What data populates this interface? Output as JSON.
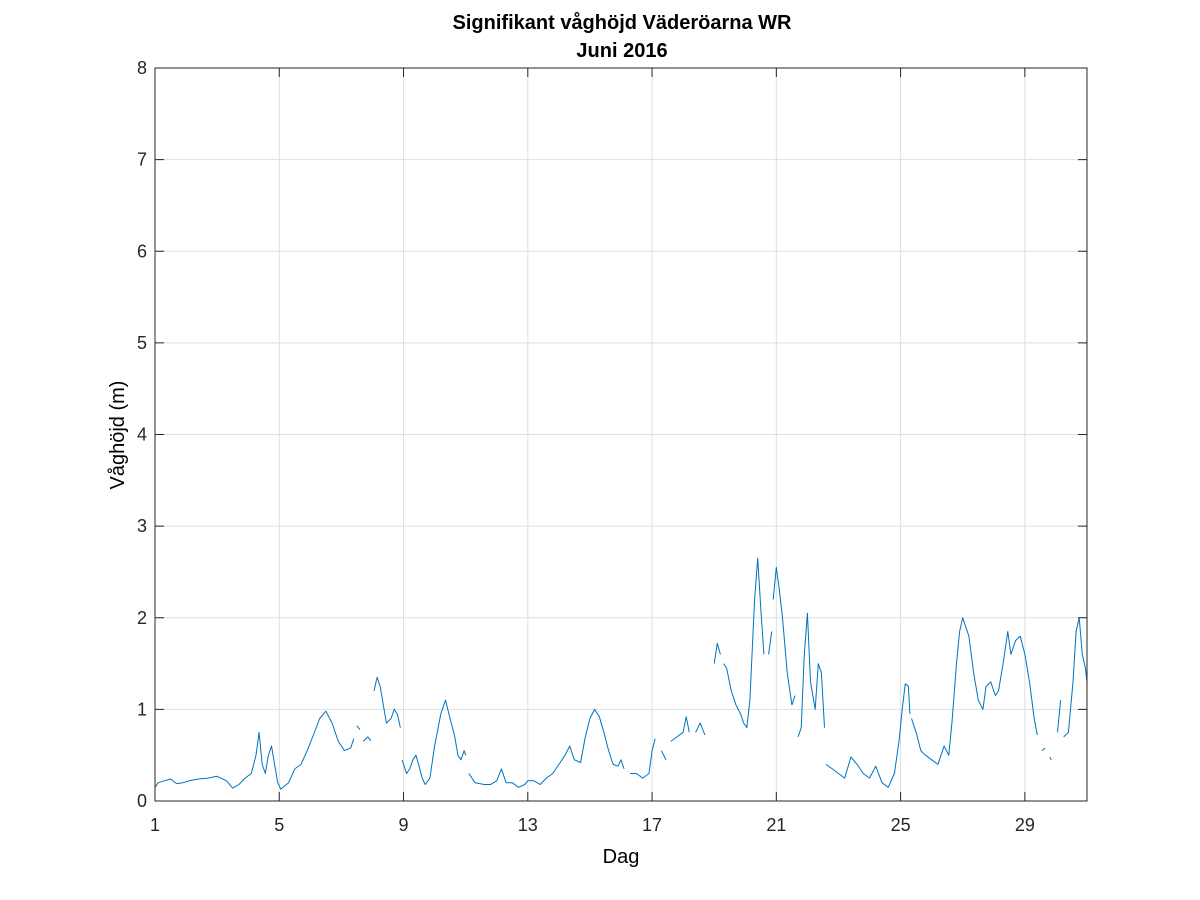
{
  "chart_data": {
    "type": "line",
    "title": "Signifikant våghöjd Väderöarna WR",
    "subtitle": "Juni 2016",
    "xlabel": "Dag",
    "ylabel": "Våghöjd (m)",
    "xlim": [
      1,
      31
    ],
    "ylim": [
      0,
      8
    ],
    "xticks": [
      1,
      5,
      9,
      13,
      17,
      21,
      25,
      29
    ],
    "yticks": [
      0,
      1,
      2,
      3,
      4,
      5,
      6,
      7,
      8
    ],
    "grid": true,
    "legend": "none",
    "line_color": "#0072BD",
    "series": [
      {
        "segments": [
          [
            [
              1.0,
              0.15
            ],
            [
              1.1,
              0.2
            ],
            [
              1.3,
              0.22
            ],
            [
              1.5,
              0.24
            ],
            [
              1.7,
              0.19
            ],
            [
              1.9,
              0.2
            ],
            [
              2.1,
              0.22
            ],
            [
              2.4,
              0.24
            ],
            [
              2.7,
              0.25
            ],
            [
              3.0,
              0.27
            ],
            [
              3.3,
              0.22
            ],
            [
              3.5,
              0.14
            ],
            [
              3.7,
              0.18
            ],
            [
              3.9,
              0.25
            ],
            [
              4.1,
              0.3
            ],
            [
              4.25,
              0.5
            ],
            [
              4.35,
              0.75
            ],
            [
              4.45,
              0.4
            ],
            [
              4.55,
              0.3
            ],
            [
              4.65,
              0.5
            ],
            [
              4.75,
              0.6
            ],
            [
              4.85,
              0.4
            ],
            [
              4.95,
              0.2
            ],
            [
              5.05,
              0.13
            ],
            [
              5.3,
              0.2
            ],
            [
              5.5,
              0.35
            ],
            [
              5.7,
              0.4
            ],
            [
              5.9,
              0.55
            ],
            [
              6.1,
              0.72
            ],
            [
              6.3,
              0.9
            ],
            [
              6.5,
              0.98
            ],
            [
              6.7,
              0.85
            ],
            [
              6.9,
              0.65
            ],
            [
              7.1,
              0.55
            ],
            [
              7.3,
              0.58
            ],
            [
              7.4,
              0.68
            ]
          ],
          [
            [
              7.5,
              0.82
            ],
            [
              7.6,
              0.78
            ]
          ],
          [
            [
              7.7,
              0.65
            ],
            [
              7.85,
              0.7
            ],
            [
              7.95,
              0.66
            ]
          ],
          [
            [
              8.05,
              1.2
            ],
            [
              8.15,
              1.35
            ],
            [
              8.25,
              1.25
            ],
            [
              8.35,
              1.05
            ],
            [
              8.45,
              0.85
            ],
            [
              8.6,
              0.9
            ],
            [
              8.7,
              1.0
            ],
            [
              8.8,
              0.95
            ],
            [
              8.9,
              0.8
            ]
          ],
          [
            [
              8.95,
              0.45
            ],
            [
              9.1,
              0.3
            ],
            [
              9.2,
              0.35
            ],
            [
              9.3,
              0.45
            ],
            [
              9.4,
              0.5
            ],
            [
              9.5,
              0.38
            ],
            [
              9.6,
              0.25
            ],
            [
              9.7,
              0.18
            ],
            [
              9.85,
              0.25
            ],
            [
              10.0,
              0.6
            ],
            [
              10.2,
              0.95
            ],
            [
              10.35,
              1.1
            ],
            [
              10.5,
              0.9
            ],
            [
              10.65,
              0.7
            ],
            [
              10.75,
              0.5
            ],
            [
              10.85,
              0.45
            ],
            [
              10.95,
              0.55
            ],
            [
              11.0,
              0.5
            ]
          ],
          [
            [
              11.1,
              0.3
            ],
            [
              11.3,
              0.2
            ],
            [
              11.6,
              0.18
            ],
            [
              11.8,
              0.18
            ],
            [
              12.0,
              0.22
            ],
            [
              12.15,
              0.35
            ],
            [
              12.3,
              0.2
            ],
            [
              12.5,
              0.2
            ],
            [
              12.7,
              0.15
            ],
            [
              12.9,
              0.18
            ],
            [
              13.0,
              0.22
            ],
            [
              13.2,
              0.22
            ],
            [
              13.4,
              0.18
            ],
            [
              13.6,
              0.25
            ],
            [
              13.8,
              0.3
            ],
            [
              14.0,
              0.4
            ],
            [
              14.2,
              0.5
            ],
            [
              14.35,
              0.6
            ],
            [
              14.5,
              0.45
            ],
            [
              14.7,
              0.42
            ],
            [
              14.85,
              0.7
            ],
            [
              15.0,
              0.9
            ],
            [
              15.15,
              1.0
            ],
            [
              15.3,
              0.92
            ],
            [
              15.45,
              0.75
            ],
            [
              15.6,
              0.55
            ],
            [
              15.75,
              0.4
            ],
            [
              15.9,
              0.38
            ],
            [
              16.0,
              0.45
            ],
            [
              16.1,
              0.35
            ]
          ],
          [
            [
              16.3,
              0.3
            ],
            [
              16.5,
              0.3
            ],
            [
              16.7,
              0.25
            ],
            [
              16.9,
              0.3
            ],
            [
              17.0,
              0.55
            ],
            [
              17.1,
              0.68
            ]
          ],
          [
            [
              17.3,
              0.55
            ],
            [
              17.45,
              0.45
            ]
          ],
          [
            [
              17.6,
              0.65
            ],
            [
              17.8,
              0.7
            ],
            [
              18.0,
              0.75
            ],
            [
              18.1,
              0.92
            ],
            [
              18.2,
              0.75
            ]
          ],
          [
            [
              18.4,
              0.75
            ],
            [
              18.55,
              0.85
            ],
            [
              18.7,
              0.72
            ]
          ],
          [
            [
              19.0,
              1.5
            ],
            [
              19.1,
              1.72
            ],
            [
              19.2,
              1.6
            ]
          ],
          [
            [
              19.3,
              1.5
            ],
            [
              19.4,
              1.45
            ],
            [
              19.55,
              1.2
            ],
            [
              19.7,
              1.05
            ],
            [
              19.85,
              0.95
            ],
            [
              19.95,
              0.85
            ],
            [
              20.05,
              0.8
            ],
            [
              20.15,
              1.1
            ],
            [
              20.3,
              2.2
            ],
            [
              20.4,
              2.65
            ],
            [
              20.5,
              2.1
            ],
            [
              20.6,
              1.6
            ]
          ],
          [
            [
              20.75,
              1.6
            ],
            [
              20.85,
              1.85
            ]
          ],
          [
            [
              20.9,
              2.2
            ],
            [
              21.0,
              2.55
            ],
            [
              21.1,
              2.3
            ],
            [
              21.2,
              2.0
            ],
            [
              21.35,
              1.4
            ],
            [
              21.5,
              1.05
            ],
            [
              21.6,
              1.15
            ]
          ],
          [
            [
              21.7,
              0.7
            ],
            [
              21.8,
              0.8
            ],
            [
              21.9,
              1.6
            ],
            [
              22.0,
              2.05
            ],
            [
              22.1,
              1.3
            ],
            [
              22.25,
              1.0
            ],
            [
              22.35,
              1.5
            ],
            [
              22.45,
              1.4
            ],
            [
              22.55,
              0.8
            ]
          ],
          [
            [
              22.6,
              0.4
            ],
            [
              22.8,
              0.35
            ],
            [
              23.0,
              0.3
            ],
            [
              23.2,
              0.25
            ],
            [
              23.4,
              0.48
            ],
            [
              23.6,
              0.4
            ],
            [
              23.8,
              0.3
            ],
            [
              24.0,
              0.25
            ],
            [
              24.2,
              0.38
            ],
            [
              24.4,
              0.2
            ],
            [
              24.6,
              0.15
            ],
            [
              24.8,
              0.3
            ],
            [
              24.95,
              0.65
            ],
            [
              25.05,
              1.0
            ],
            [
              25.15,
              1.28
            ],
            [
              25.25,
              1.25
            ],
            [
              25.3,
              0.95
            ]
          ],
          [
            [
              25.35,
              0.9
            ],
            [
              25.5,
              0.75
            ],
            [
              25.65,
              0.55
            ],
            [
              25.8,
              0.5
            ],
            [
              26.0,
              0.45
            ],
            [
              26.2,
              0.4
            ],
            [
              26.4,
              0.6
            ],
            [
              26.55,
              0.5
            ],
            [
              26.65,
              0.85
            ],
            [
              26.8,
              1.5
            ],
            [
              26.9,
              1.85
            ],
            [
              27.0,
              2.0
            ],
            [
              27.2,
              1.8
            ],
            [
              27.35,
              1.4
            ],
            [
              27.5,
              1.1
            ],
            [
              27.65,
              1.0
            ],
            [
              27.75,
              1.25
            ],
            [
              27.9,
              1.3
            ],
            [
              28.05,
              1.15
            ],
            [
              28.15,
              1.2
            ],
            [
              28.3,
              1.5
            ],
            [
              28.45,
              1.85
            ],
            [
              28.55,
              1.6
            ],
            [
              28.7,
              1.75
            ],
            [
              28.85,
              1.8
            ],
            [
              29.0,
              1.6
            ],
            [
              29.15,
              1.3
            ],
            [
              29.3,
              0.9
            ],
            [
              29.4,
              0.72
            ]
          ],
          [
            [
              29.55,
              0.55
            ],
            [
              29.65,
              0.58
            ]
          ],
          [
            [
              29.8,
              0.48
            ],
            [
              29.85,
              0.45
            ]
          ],
          [
            [
              30.05,
              0.75
            ],
            [
              30.15,
              1.1
            ]
          ],
          [
            [
              30.25,
              0.7
            ],
            [
              30.4,
              0.75
            ],
            [
              30.55,
              1.3
            ],
            [
              30.65,
              1.85
            ],
            [
              30.75,
              2.0
            ],
            [
              30.85,
              1.6
            ],
            [
              30.95,
              1.45
            ],
            [
              31.0,
              1.3
            ]
          ]
        ]
      }
    ]
  }
}
